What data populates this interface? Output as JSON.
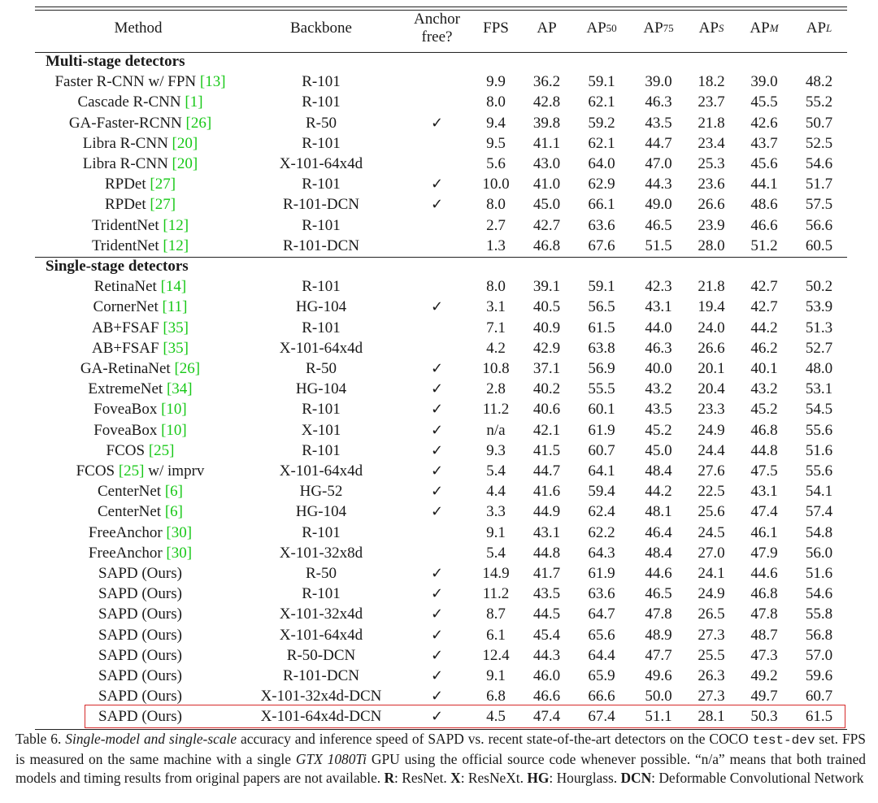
{
  "table": {
    "headers": {
      "method": "Method",
      "backbone": "Backbone",
      "anchor_free_line1": "Anchor",
      "anchor_free_line2": "free?",
      "fps": "FPS",
      "ap": "AP",
      "ap50": "AP",
      "ap50_sub": "50",
      "ap75": "AP",
      "ap75_sub": "75",
      "aps": "AP",
      "aps_sub": "S",
      "apm": "AP",
      "apm_sub": "M",
      "apl": "AP",
      "apl_sub": "L"
    },
    "check_glyph": "✓",
    "sections": [
      {
        "title": "Multi-stage detectors",
        "rows": [
          {
            "method": "Faster R-CNN w/ FPN ",
            "ref": "[13]",
            "suffix": "",
            "backbone": "R-101",
            "anchor_free": false,
            "fps": "9.9",
            "ap": "36.2",
            "ap50": "59.1",
            "ap75": "39.0",
            "aps": "18.2",
            "apm": "39.0",
            "apl": "48.2"
          },
          {
            "method": "Cascade R-CNN ",
            "ref": "[1]",
            "suffix": "",
            "backbone": "R-101",
            "anchor_free": false,
            "fps": "8.0",
            "ap": "42.8",
            "ap50": "62.1",
            "ap75": "46.3",
            "aps": "23.7",
            "apm": "45.5",
            "apl": "55.2"
          },
          {
            "method": "GA-Faster-RCNN ",
            "ref": "[26]",
            "suffix": "",
            "backbone": "R-50",
            "anchor_free": true,
            "fps": "9.4",
            "ap": "39.8",
            "ap50": "59.2",
            "ap75": "43.5",
            "aps": "21.8",
            "apm": "42.6",
            "apl": "50.7"
          },
          {
            "method": "Libra R-CNN ",
            "ref": "[20]",
            "suffix": "",
            "backbone": "R-101",
            "anchor_free": false,
            "fps": "9.5",
            "ap": "41.1",
            "ap50": "62.1",
            "ap75": "44.7",
            "aps": "23.4",
            "apm": "43.7",
            "apl": "52.5"
          },
          {
            "method": "Libra R-CNN ",
            "ref": "[20]",
            "suffix": "",
            "backbone": "X-101-64x4d",
            "anchor_free": false,
            "fps": "5.6",
            "ap": "43.0",
            "ap50": "64.0",
            "ap75": "47.0",
            "aps": "25.3",
            "apm": "45.6",
            "apl": "54.6"
          },
          {
            "method": "RPDet ",
            "ref": "[27]",
            "suffix": "",
            "backbone": "R-101",
            "anchor_free": true,
            "fps": "10.0",
            "ap": "41.0",
            "ap50": "62.9",
            "ap75": "44.3",
            "aps": "23.6",
            "apm": "44.1",
            "apl": "51.7"
          },
          {
            "method": "RPDet ",
            "ref": "[27]",
            "suffix": "",
            "backbone": "R-101-DCN",
            "anchor_free": true,
            "fps": "8.0",
            "ap": "45.0",
            "ap50": "66.1",
            "ap75": "49.0",
            "aps": "26.6",
            "apm": "48.6",
            "apl": "57.5"
          },
          {
            "method": "TridentNet ",
            "ref": "[12]",
            "suffix": "",
            "backbone": "R-101",
            "anchor_free": false,
            "fps": "2.7",
            "ap": "42.7",
            "ap50": "63.6",
            "ap75": "46.5",
            "aps": "23.9",
            "apm": "46.6",
            "apl": "56.6"
          },
          {
            "method": "TridentNet ",
            "ref": "[12]",
            "suffix": "",
            "backbone": "R-101-DCN",
            "anchor_free": false,
            "fps": "1.3",
            "ap": "46.8",
            "ap50": "67.6",
            "ap75": "51.5",
            "aps": "28.0",
            "apm": "51.2",
            "apl": "60.5"
          }
        ]
      },
      {
        "title": "Single-stage detectors",
        "rows": [
          {
            "method": "RetinaNet ",
            "ref": "[14]",
            "suffix": "",
            "backbone": "R-101",
            "anchor_free": false,
            "fps": "8.0",
            "ap": "39.1",
            "ap50": "59.1",
            "ap75": "42.3",
            "aps": "21.8",
            "apm": "42.7",
            "apl": "50.2"
          },
          {
            "method": "CornerNet ",
            "ref": "[11]",
            "suffix": "",
            "backbone": "HG-104",
            "anchor_free": true,
            "fps": "3.1",
            "ap": "40.5",
            "ap50": "56.5",
            "ap75": "43.1",
            "aps": "19.4",
            "apm": "42.7",
            "apl": "53.9"
          },
          {
            "method": "AB+FSAF ",
            "ref": "[35]",
            "suffix": "",
            "backbone": "R-101",
            "anchor_free": false,
            "fps": "7.1",
            "ap": "40.9",
            "ap50": "61.5",
            "ap75": "44.0",
            "aps": "24.0",
            "apm": "44.2",
            "apl": "51.3"
          },
          {
            "method": "AB+FSAF ",
            "ref": "[35]",
            "suffix": "",
            "backbone": "X-101-64x4d",
            "anchor_free": false,
            "fps": "4.2",
            "ap": "42.9",
            "ap50": "63.8",
            "ap75": "46.3",
            "aps": "26.6",
            "apm": "46.2",
            "apl": "52.7"
          },
          {
            "method": "GA-RetinaNet ",
            "ref": "[26]",
            "suffix": "",
            "backbone": "R-50",
            "anchor_free": true,
            "fps": "10.8",
            "ap": "37.1",
            "ap50": "56.9",
            "ap75": "40.0",
            "aps": "20.1",
            "apm": "40.1",
            "apl": "48.0"
          },
          {
            "method": "ExtremeNet ",
            "ref": "[34]",
            "suffix": "",
            "backbone": "HG-104",
            "anchor_free": true,
            "fps": "2.8",
            "ap": "40.2",
            "ap50": "55.5",
            "ap75": "43.2",
            "aps": "20.4",
            "apm": "43.2",
            "apl": "53.1"
          },
          {
            "method": "FoveaBox ",
            "ref": "[10]",
            "suffix": "",
            "backbone": "R-101",
            "anchor_free": true,
            "fps": "11.2",
            "ap": "40.6",
            "ap50": "60.1",
            "ap75": "43.5",
            "aps": "23.3",
            "apm": "45.2",
            "apl": "54.5"
          },
          {
            "method": "FoveaBox ",
            "ref": "[10]",
            "suffix": "",
            "backbone": "X-101",
            "anchor_free": true,
            "fps": "n/a",
            "ap": "42.1",
            "ap50": "61.9",
            "ap75": "45.2",
            "aps": "24.9",
            "apm": "46.8",
            "apl": "55.6"
          },
          {
            "method": "FCOS ",
            "ref": "[25]",
            "suffix": "",
            "backbone": "R-101",
            "anchor_free": true,
            "fps": "9.3",
            "ap": "41.5",
            "ap50": "60.7",
            "ap75": "45.0",
            "aps": "24.4",
            "apm": "44.8",
            "apl": "51.6"
          },
          {
            "method": "FCOS ",
            "ref": "[25]",
            "suffix": " w/ imprv",
            "backbone": "X-101-64x4d",
            "anchor_free": true,
            "fps": "5.4",
            "ap": "44.7",
            "ap50": "64.1",
            "ap75": "48.4",
            "aps": "27.6",
            "apm": "47.5",
            "apl": "55.6"
          },
          {
            "method": "CenterNet ",
            "ref": "[6]",
            "suffix": "",
            "backbone": "HG-52",
            "anchor_free": true,
            "fps": "4.4",
            "ap": "41.6",
            "ap50": "59.4",
            "ap75": "44.2",
            "aps": "22.5",
            "apm": "43.1",
            "apl": "54.1"
          },
          {
            "method": "CenterNet ",
            "ref": "[6]",
            "suffix": "",
            "backbone": "HG-104",
            "anchor_free": true,
            "fps": "3.3",
            "ap": "44.9",
            "ap50": "62.4",
            "ap75": "48.1",
            "aps": "25.6",
            "apm": "47.4",
            "apl": "57.4"
          },
          {
            "method": "FreeAnchor ",
            "ref": "[30]",
            "suffix": "",
            "backbone": "R-101",
            "anchor_free": false,
            "fps": "9.1",
            "ap": "43.1",
            "ap50": "62.2",
            "ap75": "46.4",
            "aps": "24.5",
            "apm": "46.1",
            "apl": "54.8"
          },
          {
            "method": "FreeAnchor ",
            "ref": "[30]",
            "suffix": "",
            "backbone": "X-101-32x8d",
            "anchor_free": false,
            "fps": "5.4",
            "ap": "44.8",
            "ap50": "64.3",
            "ap75": "48.4",
            "aps": "27.0",
            "apm": "47.9",
            "apl": "56.0"
          },
          {
            "method": "SAPD (Ours)",
            "ref": "",
            "suffix": "",
            "backbone": "R-50",
            "anchor_free": true,
            "fps": "14.9",
            "ap": "41.7",
            "ap50": "61.9",
            "ap75": "44.6",
            "aps": "24.1",
            "apm": "44.6",
            "apl": "51.6"
          },
          {
            "method": "SAPD (Ours)",
            "ref": "",
            "suffix": "",
            "backbone": "R-101",
            "anchor_free": true,
            "fps": "11.2",
            "ap": "43.5",
            "ap50": "63.6",
            "ap75": "46.5",
            "aps": "24.9",
            "apm": "46.8",
            "apl": "54.6"
          },
          {
            "method": "SAPD (Ours)",
            "ref": "",
            "suffix": "",
            "backbone": "X-101-32x4d",
            "anchor_free": true,
            "fps": "8.7",
            "ap": "44.5",
            "ap50": "64.7",
            "ap75": "47.8",
            "aps": "26.5",
            "apm": "47.8",
            "apl": "55.8"
          },
          {
            "method": "SAPD (Ours)",
            "ref": "",
            "suffix": "",
            "backbone": "X-101-64x4d",
            "anchor_free": true,
            "fps": "6.1",
            "ap": "45.4",
            "ap50": "65.6",
            "ap75": "48.9",
            "aps": "27.3",
            "apm": "48.7",
            "apl": "56.8"
          },
          {
            "method": "SAPD (Ours)",
            "ref": "",
            "suffix": "",
            "backbone": "R-50-DCN",
            "anchor_free": true,
            "fps": "12.4",
            "ap": "44.3",
            "ap50": "64.4",
            "ap75": "47.7",
            "aps": "25.5",
            "apm": "47.3",
            "apl": "57.0"
          },
          {
            "method": "SAPD (Ours)",
            "ref": "",
            "suffix": "",
            "backbone": "R-101-DCN",
            "anchor_free": true,
            "fps": "9.1",
            "ap": "46.0",
            "ap50": "65.9",
            "ap75": "49.6",
            "aps": "26.3",
            "apm": "49.2",
            "apl": "59.6"
          },
          {
            "method": "SAPD (Ours)",
            "ref": "",
            "suffix": "",
            "backbone": "X-101-32x4d-DCN",
            "anchor_free": true,
            "fps": "6.8",
            "ap": "46.6",
            "ap50": "66.6",
            "ap75": "50.0",
            "aps": "27.3",
            "apm": "49.7",
            "apl": "60.7"
          },
          {
            "method": "SAPD (Ours)",
            "ref": "",
            "suffix": "",
            "backbone": "X-101-64x4d-DCN",
            "anchor_free": true,
            "fps": "4.5",
            "ap": "47.4",
            "ap50": "67.4",
            "ap75": "51.1",
            "aps": "28.1",
            "apm": "50.3",
            "apl": "61.5"
          }
        ]
      }
    ]
  },
  "caption": {
    "label": "Table 6. ",
    "italic1": "Single-model and single-scale",
    "text1": " accuracy and inference speed of SAPD vs.  recent state-of-the-art detectors on the COCO ",
    "mono": "test-dev",
    "text2": " set.  FPS is measured on the same machine with a single ",
    "italic2": "GTX 1080Ti",
    "text3": " GPU using the official source code whenever possible.  “n/a” means that both trained models and timing results from original papers are not available.  ",
    "b_r": "R",
    "t_r": ": ResNet.  ",
    "b_x": "X",
    "t_x": ": ResNeXt.  ",
    "b_hg": "HG",
    "t_hg": ": Hourglass. ",
    "b_dcn": "DCN",
    "t_dcn": ": Deformable Convolutional Network"
  }
}
